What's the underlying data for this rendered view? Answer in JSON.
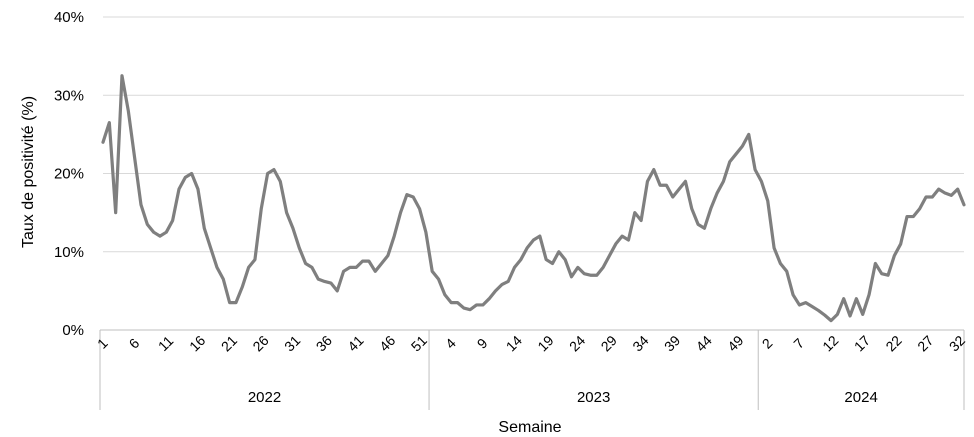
{
  "chart_data": {
    "type": "line",
    "xlabel": "Semaine",
    "ylabel": "Taux de positivité (%)",
    "ylim": [
      0,
      40
    ],
    "yticks": [
      "0%",
      "10%",
      "20%",
      "30%",
      "40%"
    ],
    "grid": true,
    "legend": "none",
    "line_color": "#7f7f7f",
    "groups": [
      {
        "label": "2022",
        "weeks": 52,
        "tick_labels": [
          "1",
          "6",
          "11",
          "16",
          "21",
          "26",
          "31",
          "36",
          "41",
          "46",
          "51"
        ],
        "tick_weeks": [
          1,
          6,
          11,
          16,
          21,
          26,
          31,
          36,
          41,
          46,
          51
        ]
      },
      {
        "label": "2023",
        "weeks": 52,
        "tick_labels": [
          "4",
          "9",
          "14",
          "19",
          "24",
          "29",
          "34",
          "39",
          "44",
          "49"
        ],
        "tick_weeks": [
          4,
          9,
          14,
          19,
          24,
          29,
          34,
          39,
          44,
          49
        ]
      },
      {
        "label": "2024",
        "weeks": 33,
        "tick_labels": [
          "2",
          "7",
          "12",
          "17",
          "22",
          "27",
          "32"
        ],
        "tick_weeks": [
          2,
          7,
          12,
          17,
          22,
          27,
          32
        ]
      }
    ],
    "series": [
      {
        "values": [
          24,
          26.5,
          15,
          32.5,
          28,
          22,
          16,
          13.5,
          12.5,
          12,
          12.5,
          14,
          18,
          19.5,
          20,
          18,
          13,
          10.5,
          8,
          6.5,
          3.5,
          3.5,
          5.5,
          8,
          9,
          15.5,
          20,
          20.5,
          19,
          15,
          13,
          10.5,
          8.5,
          8,
          6.5,
          6.2,
          6,
          5,
          7.5,
          8,
          8,
          8.8,
          8.8,
          7.5,
          8.5,
          9.5,
          12,
          15,
          17.3,
          17,
          15.5,
          12.5,
          7.5,
          6.5,
          4.5,
          3.5,
          3.5,
          2.8,
          2.6,
          3.2,
          3.2,
          4,
          5,
          5.8,
          6.2,
          8,
          9,
          10.5,
          11.5,
          12,
          9,
          8.5,
          10,
          9,
          6.8,
          8,
          7.2,
          7,
          7,
          8,
          9.5,
          11,
          12,
          11.5,
          15,
          14,
          19,
          20.5,
          18.5,
          18.5,
          17,
          18,
          19,
          15.5,
          13.5,
          13,
          15.5,
          17.5,
          19,
          21.5,
          22.5,
          23.5,
          25,
          20.5,
          19,
          16.5,
          10.5,
          8.5,
          7.5,
          4.5,
          3.2,
          3.5,
          3,
          2.5,
          1.9,
          1.2,
          2,
          4,
          1.8,
          4,
          2,
          4.5,
          8.5,
          7.2,
          7,
          9.5,
          11,
          14.5,
          14.5,
          15.5,
          17,
          17,
          18,
          17.5,
          17.2,
          18,
          16
        ]
      }
    ]
  }
}
